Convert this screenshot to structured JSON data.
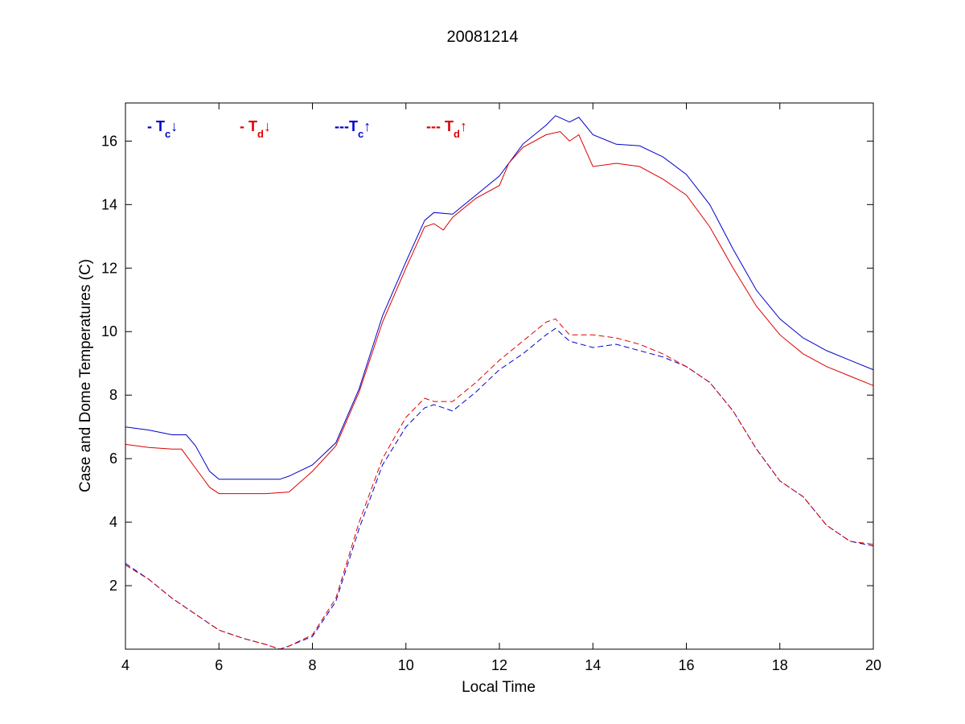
{
  "chart_data": {
    "type": "line",
    "title": "20081214",
    "xlabel": "Local Time",
    "ylabel": "Case and Dome Temperatures (C)",
    "xlim": [
      4,
      20
    ],
    "ylim": [
      0,
      17.2
    ],
    "xticks": [
      4,
      6,
      8,
      10,
      12,
      14,
      16,
      18,
      20
    ],
    "yticks": [
      2,
      4,
      6,
      8,
      10,
      12,
      14,
      16
    ],
    "grid": false,
    "legend_placement": "top-left, horizontal inside plot",
    "series": [
      {
        "key": "tc_down",
        "legend_prefix": "- T",
        "legend_sub": "c",
        "legend_arrow": "↓",
        "color": "#0000cc",
        "dash": "solid",
        "points": [
          [
            4,
            7.0
          ],
          [
            4.5,
            6.9
          ],
          [
            5,
            6.75
          ],
          [
            5.3,
            6.75
          ],
          [
            5.5,
            6.4
          ],
          [
            5.8,
            5.6
          ],
          [
            6,
            5.35
          ],
          [
            6.5,
            5.35
          ],
          [
            7,
            5.35
          ],
          [
            7.3,
            5.35
          ],
          [
            7.5,
            5.45
          ],
          [
            8,
            5.8
          ],
          [
            8.5,
            6.5
          ],
          [
            9,
            8.2
          ],
          [
            9.5,
            10.5
          ],
          [
            10,
            12.2
          ],
          [
            10.4,
            13.5
          ],
          [
            10.6,
            13.75
          ],
          [
            11,
            13.7
          ],
          [
            11.5,
            14.3
          ],
          [
            12,
            14.9
          ],
          [
            12.5,
            15.9
          ],
          [
            13,
            16.5
          ],
          [
            13.2,
            16.8
          ],
          [
            13.5,
            16.6
          ],
          [
            13.7,
            16.75
          ],
          [
            14,
            16.2
          ],
          [
            14.5,
            15.9
          ],
          [
            15,
            15.85
          ],
          [
            15.5,
            15.5
          ],
          [
            16,
            14.95
          ],
          [
            16.5,
            14.0
          ],
          [
            17,
            12.6
          ],
          [
            17.5,
            11.3
          ],
          [
            18,
            10.4
          ],
          [
            18.5,
            9.8
          ],
          [
            19,
            9.4
          ],
          [
            19.5,
            9.1
          ],
          [
            20,
            8.8
          ]
        ]
      },
      {
        "key": "td_down",
        "legend_prefix": "- T",
        "legend_sub": "d",
        "legend_arrow": "↓",
        "color": "#dd0000",
        "dash": "solid",
        "points": [
          [
            4,
            6.45
          ],
          [
            4.5,
            6.35
          ],
          [
            5,
            6.3
          ],
          [
            5.2,
            6.3
          ],
          [
            5.5,
            5.7
          ],
          [
            5.8,
            5.1
          ],
          [
            6,
            4.9
          ],
          [
            6.5,
            4.9
          ],
          [
            7,
            4.9
          ],
          [
            7.5,
            4.95
          ],
          [
            8,
            5.6
          ],
          [
            8.5,
            6.4
          ],
          [
            9,
            8.1
          ],
          [
            9.5,
            10.3
          ],
          [
            10,
            12.0
          ],
          [
            10.4,
            13.3
          ],
          [
            10.6,
            13.4
          ],
          [
            10.8,
            13.2
          ],
          [
            11,
            13.6
          ],
          [
            11.5,
            14.2
          ],
          [
            12,
            14.6
          ],
          [
            12.2,
            15.3
          ],
          [
            12.5,
            15.8
          ],
          [
            13,
            16.2
          ],
          [
            13.3,
            16.3
          ],
          [
            13.5,
            16.0
          ],
          [
            13.7,
            16.2
          ],
          [
            14,
            15.2
          ],
          [
            14.5,
            15.3
          ],
          [
            15,
            15.2
          ],
          [
            15.5,
            14.8
          ],
          [
            16,
            14.3
          ],
          [
            16.5,
            13.3
          ],
          [
            17,
            12.0
          ],
          [
            17.5,
            10.8
          ],
          [
            18,
            9.9
          ],
          [
            18.5,
            9.3
          ],
          [
            19,
            8.9
          ],
          [
            19.5,
            8.6
          ],
          [
            20,
            8.3
          ]
        ]
      },
      {
        "key": "tc_up",
        "legend_prefix": "---T",
        "legend_sub": "c",
        "legend_arrow": "↑",
        "color": "#0000cc",
        "dash": "dashed",
        "points": [
          [
            4,
            2.7
          ],
          [
            4.5,
            2.2
          ],
          [
            5,
            1.6
          ],
          [
            5.5,
            1.1
          ],
          [
            6,
            0.6
          ],
          [
            6.5,
            0.35
          ],
          [
            7,
            0.15
          ],
          [
            7.3,
            0.0
          ],
          [
            7.5,
            0.1
          ],
          [
            8,
            0.4
          ],
          [
            8.5,
            1.5
          ],
          [
            9,
            3.8
          ],
          [
            9.5,
            5.8
          ],
          [
            10,
            7.0
          ],
          [
            10.4,
            7.6
          ],
          [
            10.6,
            7.7
          ],
          [
            11,
            7.5
          ],
          [
            11.5,
            8.1
          ],
          [
            12,
            8.8
          ],
          [
            12.5,
            9.3
          ],
          [
            13,
            9.9
          ],
          [
            13.2,
            10.1
          ],
          [
            13.5,
            9.7
          ],
          [
            14,
            9.5
          ],
          [
            14.5,
            9.6
          ],
          [
            15,
            9.4
          ],
          [
            15.5,
            9.2
          ],
          [
            16,
            8.9
          ],
          [
            16.5,
            8.4
          ],
          [
            17,
            7.5
          ],
          [
            17.5,
            6.3
          ],
          [
            18,
            5.3
          ],
          [
            18.5,
            4.8
          ],
          [
            19,
            3.9
          ],
          [
            19.5,
            3.4
          ],
          [
            20,
            3.25
          ]
        ]
      },
      {
        "key": "td_up",
        "legend_prefix": "--- T",
        "legend_sub": "d",
        "legend_arrow": "↑",
        "color": "#dd0000",
        "dash": "dashed",
        "points": [
          [
            4,
            2.65
          ],
          [
            4.5,
            2.2
          ],
          [
            5,
            1.6
          ],
          [
            5.5,
            1.1
          ],
          [
            6,
            0.6
          ],
          [
            6.5,
            0.35
          ],
          [
            7,
            0.15
          ],
          [
            7.3,
            0.0
          ],
          [
            7.5,
            0.1
          ],
          [
            8,
            0.45
          ],
          [
            8.5,
            1.6
          ],
          [
            9,
            4.0
          ],
          [
            9.5,
            6.0
          ],
          [
            10,
            7.3
          ],
          [
            10.4,
            7.9
          ],
          [
            10.6,
            7.8
          ],
          [
            11,
            7.8
          ],
          [
            11.5,
            8.4
          ],
          [
            12,
            9.1
          ],
          [
            12.5,
            9.7
          ],
          [
            13,
            10.3
          ],
          [
            13.2,
            10.4
          ],
          [
            13.5,
            9.9
          ],
          [
            14,
            9.9
          ],
          [
            14.5,
            9.8
          ],
          [
            15,
            9.6
          ],
          [
            15.5,
            9.3
          ],
          [
            16,
            8.9
          ],
          [
            16.5,
            8.4
          ],
          [
            17,
            7.5
          ],
          [
            17.5,
            6.3
          ],
          [
            18,
            5.3
          ],
          [
            18.5,
            4.8
          ],
          [
            19,
            3.9
          ],
          [
            19.5,
            3.4
          ],
          [
            20,
            3.3
          ]
        ]
      }
    ]
  }
}
